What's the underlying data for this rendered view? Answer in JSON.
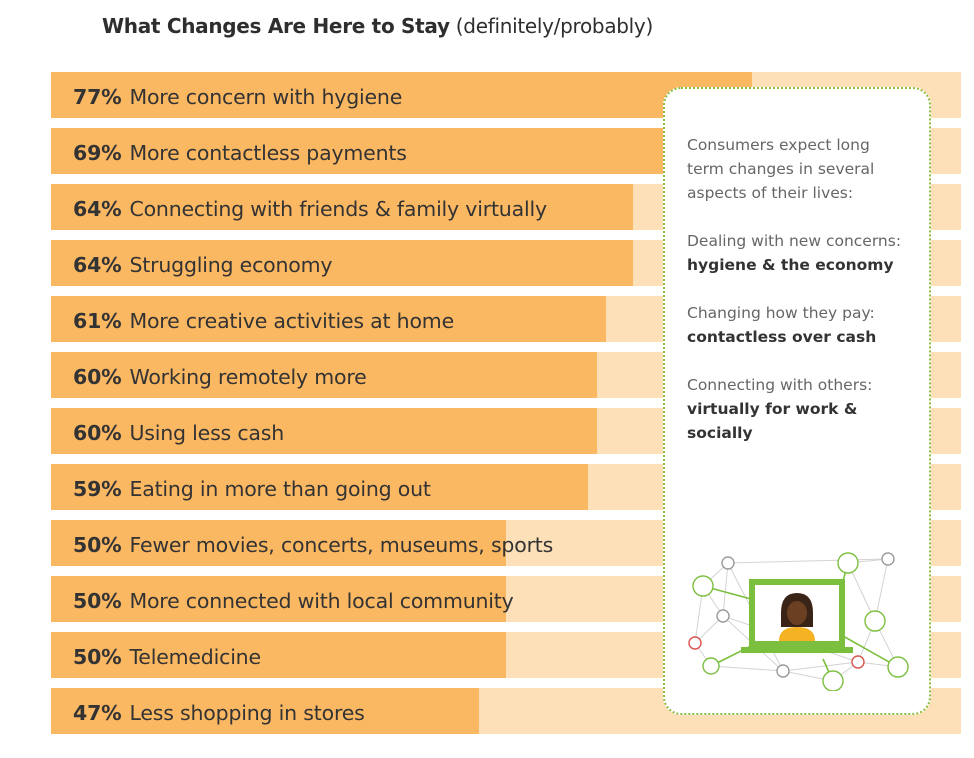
{
  "title": {
    "main": "What Changes Are Here to Stay",
    "sub": "(definitely/probably)"
  },
  "chart_data": {
    "type": "bar",
    "orientation": "horizontal",
    "title": "What Changes Are Here to Stay (definitely/probably)",
    "categories": [
      "More concern with hygiene",
      "More contactless payments",
      "Connecting with friends & family virtually",
      "Struggling economy",
      "More creative activities at home",
      "Working remotely more",
      "Using less cash",
      "Eating in more than going out",
      "Fewer movies, concerts, museums, sports",
      "More connected with local community",
      "Telemedicine",
      "Less shopping in stores"
    ],
    "values": [
      77,
      69,
      64,
      64,
      61,
      60,
      60,
      59,
      50,
      50,
      50,
      47
    ],
    "value_labels": [
      "77%",
      "69%",
      "64%",
      "64%",
      "61%",
      "60%",
      "60%",
      "59%",
      "50%",
      "50%",
      "50%",
      "47%"
    ],
    "xlim": [
      0,
      100
    ],
    "unit": "%",
    "colors": {
      "bar": "#fbb863",
      "track": "#fde0b8"
    }
  },
  "callout": {
    "intro": "Consumers expect long term changes in several aspects of their lives:",
    "items": [
      {
        "lead": "Dealing with new concerns:",
        "bold": "hygiene & the economy"
      },
      {
        "lead": "Changing how they pay:",
        "bold": "contactless over cash"
      },
      {
        "lead": "Connecting with others:",
        "bold": "virtually for work & socially"
      }
    ],
    "border_color": "#8cbf3f"
  },
  "illustration": {
    "icons": [
      "laptop-person-icon",
      "network-node-icons"
    ]
  }
}
